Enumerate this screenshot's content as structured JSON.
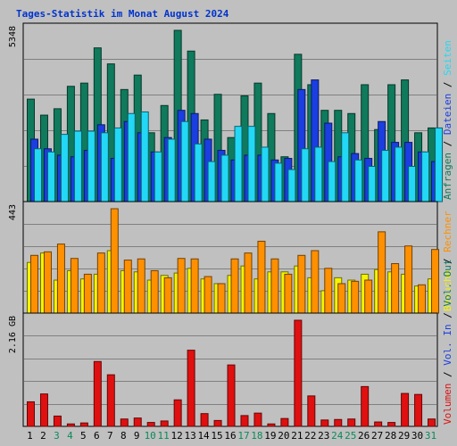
{
  "chart_data": {
    "type": "bar",
    "title": "Tages-Statistik im Monat August 2024",
    "days": [
      "1",
      "2",
      "3",
      "4",
      "5",
      "6",
      "7",
      "8",
      "9",
      "10",
      "11",
      "12",
      "13",
      "14",
      "15",
      "16",
      "17",
      "18",
      "19",
      "20",
      "21",
      "22",
      "23",
      "24",
      "25",
      "26",
      "27",
      "28",
      "29",
      "30",
      "31"
    ],
    "weekend_days": [
      "3",
      "4",
      "10",
      "11",
      "17",
      "18",
      "24",
      "25",
      "31"
    ],
    "colors": {
      "anfragen": "#0f7a5c",
      "dateien": "#1a3ee0",
      "seiten": "#22d8f5",
      "besuche": "#f4f400",
      "rechner": "#ff9000",
      "volumen": "#e01010",
      "weekday_label": "#000000",
      "weekend_label": "#0a8a5a",
      "background": "#c0c0c0",
      "grid": "#808080"
    },
    "panels": [
      {
        "ymax_label": "5348",
        "ylim": [
          0,
          5348
        ],
        "legend": [
          {
            "text": "Anfragen",
            "color": "#0f7a5c"
          },
          {
            "text": "Dateien",
            "color": "#1a3ee0"
          },
          {
            "text": "Seiten",
            "color": "#22d8f5"
          }
        ],
        "series": [
          {
            "name": "Anfragen",
            "color": "#0f7a5c",
            "values": [
              3200,
              2700,
              2900,
              3600,
              3700,
              4800,
              4300,
              3500,
              3950,
              2150,
              3000,
              5348,
              4700,
              2550,
              3350,
              2000,
              3300,
              3700,
              2750,
              1400,
              4600,
              3650,
              2850,
              2850,
              2750,
              3650,
              2250,
              3650,
              3800,
              2150,
              2300
            ]
          },
          {
            "name": "Dateien",
            "color": "#1a3ee0",
            "values": [
              1950,
              1650,
              1450,
              1400,
              1600,
              2400,
              1350,
              2500,
              2150,
              1550,
              2000,
              2850,
              2750,
              1950,
              1600,
              1300,
              1450,
              1450,
              1300,
              1350,
              3500,
              3800,
              2450,
              1400,
              1500,
              1350,
              2500,
              1850,
              1850,
              1550,
              1250
            ]
          },
          {
            "name": "Seiten",
            "color": "#22d8f5",
            "values": [
              1650,
              1550,
              2100,
              2200,
              2200,
              2150,
              2300,
              2750,
              2800,
              1550,
              1950,
              2500,
              1800,
              1250,
              1450,
              2350,
              2350,
              1700,
              1200,
              1000,
              1650,
              1700,
              1250,
              2150,
              1300,
              1100,
              1600,
              1700,
              1100,
              1550,
              2300
            ]
          }
        ]
      },
      {
        "ymax_label": "443",
        "ylim": [
          0,
          443
        ],
        "legend": [
          {
            "text": "Besuche",
            "color": "#f4f400"
          },
          {
            "text": "Rechner",
            "color": "#ff9000"
          }
        ],
        "series": [
          {
            "name": "Besuche",
            "color": "#f4f400",
            "values": [
              215,
              255,
              140,
              180,
              145,
              165,
              265,
              180,
              175,
              140,
              160,
              170,
              190,
              145,
              125,
              160,
              200,
              145,
              175,
              175,
              200,
              150,
              95,
              150,
              140,
              165,
              185,
              175,
              165,
              115,
              145
            ]
          },
          {
            "name": "Rechner",
            "color": "#ff9000",
            "values": [
              245,
              260,
              293,
              232,
              165,
              255,
              443,
              225,
              230,
              180,
              150,
              232,
              230,
              155,
              125,
              230,
              255,
              305,
              230,
              165,
              245,
              265,
              190,
              125,
              135,
              140,
              345,
              210,
              285,
              120,
              270
            ]
          }
        ]
      },
      {
        "ymax_label": "2.16 GB",
        "ylim": [
          0,
          2.16
        ],
        "legend": [
          {
            "text": "Volumen",
            "color": "#e01010"
          },
          {
            "text": "Vol. In",
            "color": "#1a3ee0"
          },
          {
            "text": "Vol. Out",
            "color": "#0f7a5c"
          }
        ],
        "series": [
          {
            "name": "Volumen",
            "color": "#e01010",
            "values": [
              0.5,
              0.66,
              0.21,
              0.05,
              0.07,
              1.32,
              1.05,
              0.15,
              0.17,
              0.08,
              0.11,
              0.54,
              1.55,
              0.26,
              0.12,
              1.25,
              0.22,
              0.27,
              0.05,
              0.16,
              2.16,
              0.62,
              0.13,
              0.14,
              0.15,
              0.81,
              0.09,
              0.08,
              0.67,
              0.65,
              0.15
            ]
          }
        ]
      }
    ]
  }
}
